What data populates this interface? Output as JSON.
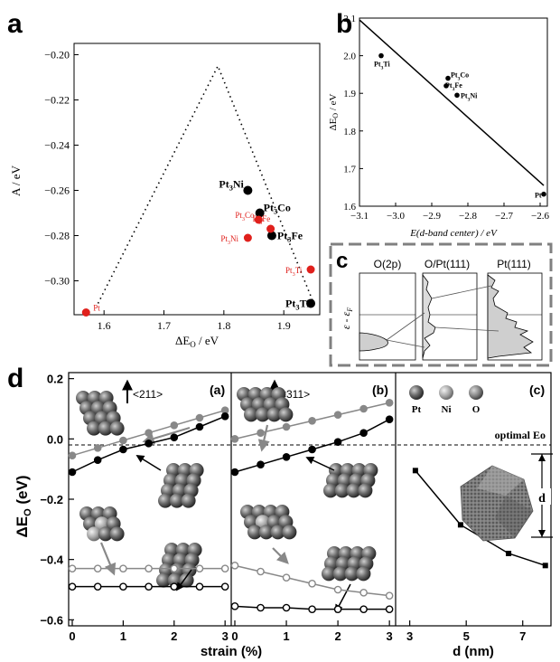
{
  "panel_a": {
    "letter": "a",
    "ylabel": "A / eV",
    "xlabel": "ΔE",
    "xlabel_sub": "O",
    "xlabel_unit": " / eV",
    "x_ticks": [
      "1.6",
      "1.7",
      "1.8",
      "1.9"
    ],
    "y_ticks": [
      "-0.20",
      "-0.22",
      "-0.24",
      "-0.26",
      "-0.28",
      "-0.30"
    ]
  },
  "panel_b": {
    "letter": "b",
    "ylabel": "ΔE",
    "ylabel_sub": "O",
    "ylabel_unit": " / eV",
    "xlabel": "E(d-band center) / eV",
    "x_ticks": [
      "-3.1",
      "-3.0",
      "-2.9",
      "-2.8",
      "-2.7",
      "-2.6"
    ],
    "y_ticks": [
      "2.1",
      "2.0",
      "1.9",
      "1.8",
      "1.7",
      "1.6"
    ]
  },
  "panel_c": {
    "letter": "c",
    "titles": [
      "O(2p)",
      "O/Pt(111)",
      "Pt(111)"
    ],
    "ylabel": "ε - ε",
    "ylabel_sub": "F"
  },
  "panel_d": {
    "letter": "d",
    "ylabel": "ΔE",
    "ylabel_sub": "O",
    "ylabel_unit": " (eV)",
    "xlabel_left": "strain (%)",
    "xlabel_right": "d (nm)",
    "sub_a": "(a)",
    "sub_b": "(b)",
    "sub_c": "(c)",
    "facet_a": "<211>",
    "facet_b": "<311>",
    "legend": [
      "Pt",
      "Ni",
      "O"
    ],
    "optimal": "optimal Eo",
    "d_label": "d",
    "x_ticks_strain": [
      "0",
      "1",
      "2",
      "3"
    ],
    "x_ticks_d": [
      "3",
      "5",
      "7"
    ],
    "y_ticks": [
      "0.2",
      "0.0",
      "-0.2",
      "-0.4",
      "-0.6"
    ]
  },
  "chart_data": [
    {
      "type": "scatter",
      "panel": "a",
      "xlabel": "ΔEO / eV",
      "ylabel": "A / eV",
      "xlim": [
        1.55,
        1.96
      ],
      "ylim": [
        -0.315,
        -0.195
      ],
      "series": [
        {
          "color": "#000000",
          "points": [
            {
              "label": "Pt3Ni",
              "x": 1.84,
              "y": -0.26
            },
            {
              "label": "Pt3Co",
              "x": 1.86,
              "y": -0.27
            },
            {
              "label": "Pt3Fe",
              "x": 1.88,
              "y": -0.28
            },
            {
              "label": "Pt3Ti",
              "x": 1.945,
              "y": -0.31
            }
          ]
        },
        {
          "color": "#e0201c",
          "points": [
            {
              "label": "Pt",
              "x": 1.57,
              "y": -0.314
            },
            {
              "label": "Pt3Co",
              "x": 1.858,
              "y": -0.273
            },
            {
              "label": "Pt3Fe",
              "x": 1.878,
              "y": -0.277
            },
            {
              "label": "Pt3Ni",
              "x": 1.84,
              "y": -0.281
            },
            {
              "label": "Pt3Ti",
              "x": 1.945,
              "y": -0.295
            }
          ]
        }
      ],
      "volcano": [
        [
          1.59,
          -0.31
        ],
        [
          1.79,
          -0.205
        ],
        [
          1.95,
          -0.31
        ]
      ]
    },
    {
      "type": "scatter",
      "panel": "b",
      "xlabel": "E(d-band center) / eV",
      "ylabel": "ΔEO / eV",
      "xlim": [
        -3.1,
        -2.58
      ],
      "ylim": [
        1.6,
        2.1
      ],
      "points": [
        {
          "label": "Pt3Ti",
          "x": -3.04,
          "y": 2.0
        },
        {
          "label": "Pt3Co",
          "x": -2.855,
          "y": 1.94
        },
        {
          "label": "Pt3Fe",
          "x": -2.86,
          "y": 1.92
        },
        {
          "label": "Pt3Ni",
          "x": -2.83,
          "y": 1.895
        },
        {
          "label": "Pt",
          "x": -2.59,
          "y": 1.632
        }
      ],
      "fit_line": [
        [
          -3.1,
          2.095
        ],
        [
          -2.59,
          1.655
        ]
      ]
    },
    {
      "type": "line",
      "panel": "d(a)",
      "xlabel": "strain (%)",
      "x": [
        0,
        0.5,
        1,
        1.5,
        2,
        2.5,
        3
      ],
      "series": [
        {
          "color": "#888888",
          "fill": "solid",
          "values": [
            -0.055,
            -0.03,
            -0.005,
            0.02,
            0.045,
            0.07,
            0.095
          ]
        },
        {
          "color": "#000000",
          "fill": "solid",
          "values": [
            -0.11,
            -0.07,
            -0.035,
            -0.015,
            0.005,
            0.04,
            0.075
          ]
        },
        {
          "color": "#888888",
          "fill": "open",
          "values": [
            -0.43,
            -0.43,
            -0.43,
            -0.43,
            -0.43,
            -0.43,
            -0.43
          ]
        },
        {
          "color": "#000000",
          "fill": "open",
          "values": [
            -0.49,
            -0.49,
            -0.49,
            -0.49,
            -0.49,
            -0.49,
            -0.49
          ]
        }
      ]
    },
    {
      "type": "line",
      "panel": "d(b)",
      "xlabel": "strain (%)",
      "x": [
        0,
        0.5,
        1,
        1.5,
        2,
        2.5,
        3
      ],
      "series": [
        {
          "color": "#888888",
          "fill": "solid",
          "values": [
            0.0,
            0.02,
            0.04,
            0.06,
            0.08,
            0.1,
            0.12
          ]
        },
        {
          "color": "#000000",
          "fill": "solid",
          "values": [
            -0.11,
            -0.085,
            -0.06,
            -0.035,
            -0.01,
            0.02,
            0.065
          ]
        },
        {
          "color": "#888888",
          "fill": "open",
          "values": [
            -0.42,
            -0.44,
            -0.46,
            -0.48,
            -0.5,
            -0.51,
            -0.52
          ]
        },
        {
          "color": "#000000",
          "fill": "open",
          "values": [
            -0.555,
            -0.56,
            -0.56,
            -0.565,
            -0.565,
            -0.565,
            -0.565
          ]
        }
      ]
    },
    {
      "type": "line",
      "panel": "d(c)",
      "xlabel": "d (nm)",
      "x": [
        3.2,
        4.8,
        6.5,
        7.8
      ],
      "values": [
        -0.105,
        -0.285,
        -0.38,
        -0.42
      ]
    }
  ]
}
